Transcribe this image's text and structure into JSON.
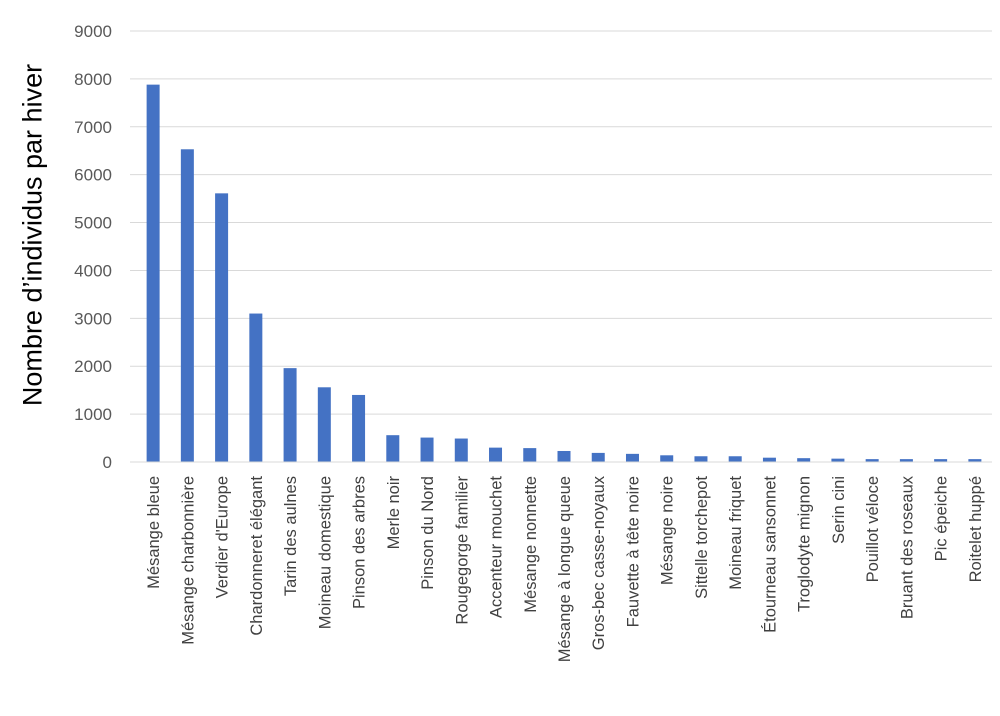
{
  "chart_data": {
    "type": "bar",
    "title": "",
    "xlabel": "",
    "ylabel": "Nombre d’individus par hiver",
    "ylim": [
      0,
      9000
    ],
    "yticks": [
      0,
      1000,
      2000,
      3000,
      4000,
      5000,
      6000,
      7000,
      8000,
      9000
    ],
    "grid": true,
    "bar_color": "#4472C4",
    "categories": [
      "Mésange bleue",
      "Mésange charbonnière",
      "Verdier d'Europe",
      "Chardonneret élégant",
      "Tarin des aulnes",
      "Moineau domestique",
      "Pinson des arbres",
      "Merle noir",
      "Pinson du Nord",
      "Rougegorge familier",
      "Accenteur mouchet",
      "Mésange nonnette",
      "Mésange à longue queue",
      "Gros-bec casse-noyaux",
      "Fauvette à tête noire",
      "Mésange noire",
      "Sittelle torchepot",
      "Moineau friquet",
      "Étourneau sansonnet",
      "Troglodyte mignon",
      "Serin cini",
      "Pouillot véloce",
      "Bruant des roseaux",
      "Pic épeiche",
      "Roitelet huppé"
    ],
    "values": [
      7880,
      6530,
      5610,
      3100,
      1960,
      1560,
      1400,
      560,
      510,
      490,
      300,
      290,
      230,
      190,
      170,
      140,
      120,
      120,
      90,
      80,
      70,
      60,
      60,
      60,
      60
    ]
  }
}
